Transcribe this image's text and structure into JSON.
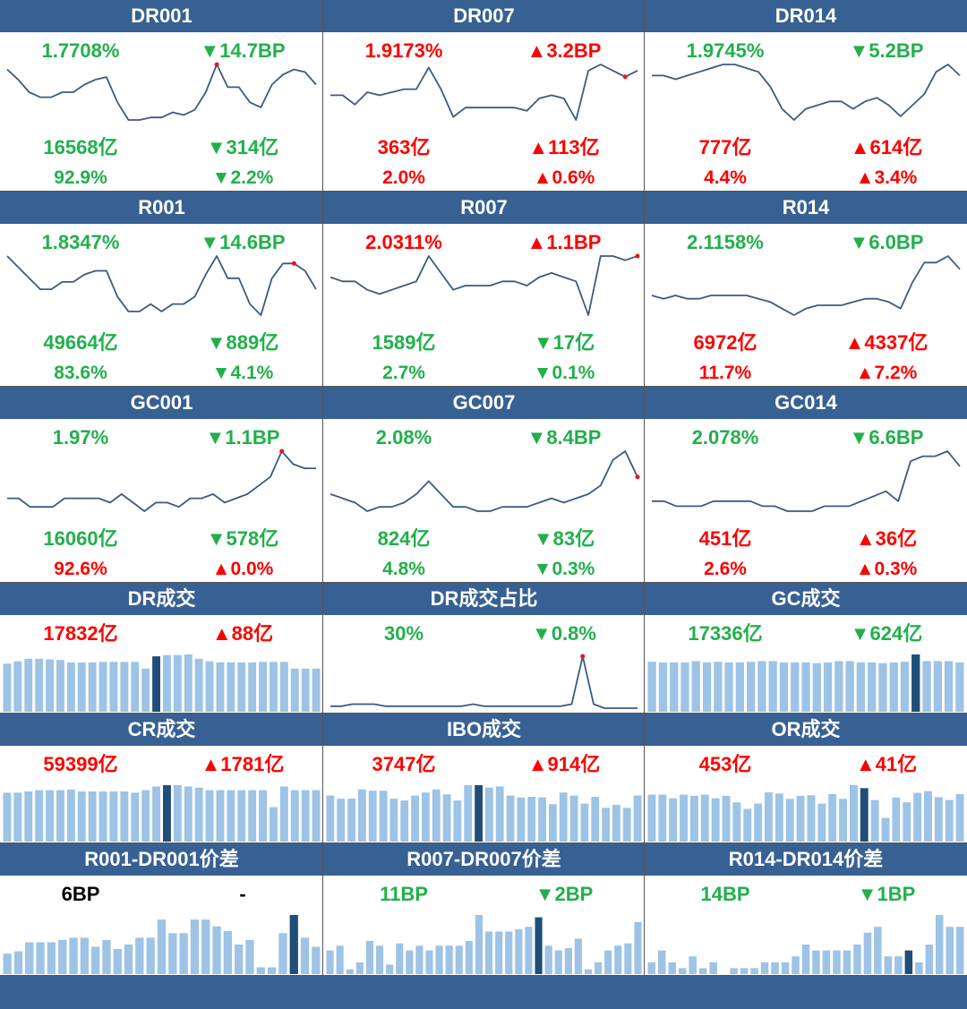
{
  "colors": {
    "header": "#386193",
    "up": "#ff0000",
    "down": "#21b04b",
    "line": "#3d5a80",
    "bar": "#9dc3e6",
    "bar_highlight": "#1f4e79",
    "point": "#e8141a"
  },
  "rows": [
    {
      "kind": "line",
      "cells": [
        {
          "title": "DR001",
          "rate": "1.7708%",
          "rate_dir": "down",
          "rate_chg": "▼14.7BP",
          "vol": "16568亿",
          "vol_dir": "down",
          "vol_chg": "▼314亿",
          "share": "92.9%",
          "share_dir": "down",
          "share_chg": "▼2.2%"
        },
        {
          "title": "DR007",
          "rate": "1.9173%",
          "rate_dir": "up",
          "rate_chg": "▲3.2BP",
          "vol": "363亿",
          "vol_dir": "up",
          "vol_chg": "▲113亿",
          "share": "2.0%",
          "share_dir": "up",
          "share_chg": "▲0.6%"
        },
        {
          "title": "DR014",
          "rate": "1.9745%",
          "rate_dir": "down",
          "rate_chg": "▼5.2BP",
          "vol": "777亿",
          "vol_dir": "up",
          "vol_chg": "▲614亿",
          "share": "4.4%",
          "share_dir": "up",
          "share_chg": "▲3.4%"
        }
      ]
    },
    {
      "kind": "line",
      "cells": [
        {
          "title": "R001",
          "rate": "1.8347%",
          "rate_dir": "down",
          "rate_chg": "▼14.6BP",
          "vol": "49664亿",
          "vol_dir": "down",
          "vol_chg": "▼889亿",
          "share": "83.6%",
          "share_dir": "down",
          "share_chg": "▼4.1%"
        },
        {
          "title": "R007",
          "rate": "2.0311%",
          "rate_dir": "up",
          "rate_chg": "▲1.1BP",
          "vol": "1589亿",
          "vol_dir": "down",
          "vol_chg": "▼17亿",
          "share": "2.7%",
          "share_dir": "down",
          "share_chg": "▼0.1%"
        },
        {
          "title": "R014",
          "rate": "2.1158%",
          "rate_dir": "down",
          "rate_chg": "▼6.0BP",
          "vol": "6972亿",
          "vol_dir": "up",
          "vol_chg": "▲4337亿",
          "share": "11.7%",
          "share_dir": "up",
          "share_chg": "▲7.2%"
        }
      ]
    },
    {
      "kind": "line",
      "cells": [
        {
          "title": "GC001",
          "rate": "1.97%",
          "rate_dir": "down",
          "rate_chg": "▼1.1BP",
          "vol": "16060亿",
          "vol_dir": "down",
          "vol_chg": "▼578亿",
          "share": "92.6%",
          "share_dir": "up",
          "share_chg": "▲0.0%"
        },
        {
          "title": "GC007",
          "rate": "2.08%",
          "rate_dir": "down",
          "rate_chg": "▼8.4BP",
          "vol": "824亿",
          "vol_dir": "down",
          "vol_chg": "▼83亿",
          "share": "4.8%",
          "share_dir": "down",
          "share_chg": "▼0.3%"
        },
        {
          "title": "GC014",
          "rate": "2.078%",
          "rate_dir": "down",
          "rate_chg": "▼6.6BP",
          "vol": "451亿",
          "vol_dir": "up",
          "vol_chg": "▲36亿",
          "share": "2.6%",
          "share_dir": "up",
          "share_chg": "▲0.3%"
        }
      ]
    },
    {
      "kind": "volume",
      "cells": [
        {
          "title": "DR成交",
          "value": "17832亿",
          "value_dir": "up",
          "chg": "▲88亿",
          "chg_dir": "up"
        },
        {
          "title": "DR成交占比",
          "value": "30%",
          "value_dir": "down",
          "chg": "▼0.8%",
          "chg_dir": "down"
        },
        {
          "title": "GC成交",
          "value": "17336亿",
          "value_dir": "down",
          "chg": "▼624亿",
          "chg_dir": "down"
        }
      ]
    },
    {
      "kind": "volume",
      "cells": [
        {
          "title": "CR成交",
          "value": "59399亿",
          "value_dir": "up",
          "chg": "▲1781亿",
          "chg_dir": "up"
        },
        {
          "title": "IBO成交",
          "value": "3747亿",
          "value_dir": "up",
          "chg": "▲914亿",
          "chg_dir": "up"
        },
        {
          "title": "OR成交",
          "value": "453亿",
          "value_dir": "up",
          "chg": "▲41亿",
          "chg_dir": "up"
        }
      ]
    },
    {
      "kind": "spread",
      "cells": [
        {
          "title": "R001-DR001价差",
          "value": "6BP",
          "value_dir": "neutral",
          "chg": "-",
          "chg_dir": "neutral"
        },
        {
          "title": "R007-DR007价差",
          "value": "11BP",
          "value_dir": "down",
          "chg": "▼2BP",
          "chg_dir": "down"
        },
        {
          "title": "R014-DR014价差",
          "value": "14BP",
          "value_dir": "down",
          "chg": "▼1BP",
          "chg_dir": "down"
        }
      ]
    }
  ],
  "chart_data": [
    {
      "panel": "DR001",
      "type": "line",
      "highlight_index": 19,
      "values": [
        61,
        57,
        52,
        50,
        50,
        52,
        52,
        55,
        57,
        58,
        48,
        41,
        41,
        42,
        42,
        44,
        43,
        45,
        52,
        63,
        54,
        54,
        48,
        46,
        55,
        59,
        61,
        60,
        55
      ]
    },
    {
      "panel": "DR007",
      "type": "line",
      "highlight_index": 24,
      "values": [
        34,
        34,
        31,
        35,
        34,
        35,
        36,
        36,
        43,
        36,
        27,
        30,
        30,
        30,
        30,
        30,
        29,
        33,
        34,
        33,
        26,
        42,
        44,
        42,
        40,
        42
      ]
    },
    {
      "panel": "DR014",
      "type": "line",
      "highlight_index": 27,
      "values": [
        55,
        55,
        54,
        55,
        56,
        57,
        58,
        58,
        57,
        56,
        52,
        46,
        43,
        46,
        47,
        48,
        48,
        46,
        48,
        49,
        47,
        44,
        47,
        50,
        56,
        58,
        55
      ]
    },
    {
      "panel": "R001",
      "type": "line",
      "highlight_index": 26,
      "values": [
        66,
        63,
        60,
        57,
        57,
        59,
        59,
        61,
        62,
        62,
        55,
        51,
        51,
        53,
        51,
        53,
        53,
        55,
        61,
        66,
        60,
        60,
        53,
        50,
        60,
        64,
        64,
        62,
        57
      ]
    },
    {
      "panel": "R007",
      "type": "line",
      "highlight_index": 25,
      "values": [
        44,
        43,
        43,
        41,
        40,
        41,
        42,
        43,
        49,
        45,
        41,
        42,
        42,
        42,
        43,
        43,
        42,
        44,
        45,
        44,
        43,
        35,
        49,
        49,
        48,
        49
      ]
    },
    {
      "panel": "R014",
      "type": "line",
      "highlight_index": 27,
      "values": [
        52,
        51,
        52,
        51,
        51,
        52,
        52,
        52,
        52,
        51,
        50,
        48,
        46,
        48,
        49,
        49,
        49,
        50,
        51,
        51,
        50,
        48,
        56,
        62,
        62,
        64,
        60
      ]
    },
    {
      "panel": "GC001",
      "type": "line",
      "highlight_index": 24,
      "values": [
        33,
        33,
        31,
        31,
        31,
        33,
        33,
        33,
        33,
        32,
        34,
        32,
        30,
        32,
        32,
        31,
        33,
        33,
        34,
        32,
        33,
        34,
        36,
        38,
        44,
        41,
        40,
        40
      ]
    },
    {
      "panel": "GC007",
      "type": "line",
      "highlight_index": 25,
      "values": [
        41,
        40,
        39,
        37,
        38,
        38,
        39,
        41,
        44,
        41,
        38,
        38,
        37,
        37,
        38,
        38,
        38,
        39,
        40,
        39,
        40,
        41,
        43,
        49,
        51,
        45
      ]
    },
    {
      "panel": "GC014",
      "type": "line",
      "highlight_index": 26,
      "values": [
        34,
        34,
        33,
        33,
        33,
        34,
        34,
        34,
        34,
        33,
        33,
        32,
        32,
        32,
        33,
        33,
        33,
        34,
        35,
        36,
        34,
        42,
        43,
        43,
        44,
        41
      ]
    },
    {
      "panel": "DR成交",
      "type": "bar",
      "highlight_index": 14,
      "values": [
        78,
        82,
        86,
        86,
        85,
        84,
        80,
        80,
        80,
        81,
        81,
        81,
        81,
        70,
        90,
        92,
        92,
        93,
        86,
        82,
        80,
        80,
        80,
        80,
        81,
        81,
        81,
        70,
        70,
        70
      ]
    },
    {
      "panel": "DR成交占比",
      "type": "line",
      "highlight_index": 23,
      "values": [
        31,
        31,
        32,
        32,
        32,
        31,
        31,
        31,
        31,
        31,
        31,
        31,
        31,
        32,
        31,
        31,
        31,
        31,
        31,
        31,
        31,
        31,
        32,
        56,
        32,
        30,
        30,
        30,
        30
      ]
    },
    {
      "panel": "GC成交",
      "type": "bar",
      "highlight_index": 24,
      "values": [
        75,
        74,
        74,
        74,
        76,
        74,
        75,
        74,
        74,
        75,
        76,
        76,
        74,
        74,
        74,
        73,
        74,
        76,
        76,
        74,
        74,
        73,
        74,
        75,
        86,
        76,
        76,
        76,
        74
      ]
    },
    {
      "panel": "CR成交",
      "type": "bar",
      "highlight_index": 15,
      "values": [
        78,
        78,
        80,
        82,
        82,
        82,
        83,
        80,
        80,
        80,
        80,
        80,
        78,
        82,
        88,
        90,
        90,
        88,
        86,
        82,
        82,
        82,
        82,
        82,
        82,
        55,
        88,
        82,
        82,
        82
      ]
    },
    {
      "panel": "IBO成交",
      "type": "bar",
      "highlight_index": 14,
      "values": [
        75,
        70,
        70,
        85,
        83,
        83,
        70,
        67,
        75,
        80,
        85,
        77,
        67,
        92,
        92,
        88,
        90,
        75,
        72,
        73,
        72,
        61,
        80,
        75,
        62,
        73,
        55,
        60,
        55,
        75
      ]
    },
    {
      "panel": "OR成交",
      "type": "bar",
      "highlight_index": 20,
      "values": [
        79,
        79,
        73,
        79,
        77,
        79,
        73,
        77,
        66,
        55,
        64,
        83,
        81,
        72,
        77,
        78,
        64,
        80,
        72,
        95,
        90,
        70,
        40,
        74,
        66,
        82,
        85,
        75,
        70,
        80
      ]
    },
    {
      "panel": "R001-DR001价差",
      "type": "bar",
      "highlight_index": 26,
      "values": [
        9,
        10,
        14,
        14,
        14,
        15,
        16,
        16,
        12,
        15,
        11,
        13,
        16,
        16,
        24,
        18,
        18,
        24,
        24,
        21,
        19,
        13,
        15,
        3,
        3,
        18,
        26,
        16,
        12
      ]
    },
    {
      "panel": "R007-DR007价差",
      "type": "bar",
      "highlight_index": 21,
      "values": [
        10,
        12,
        2,
        5,
        14,
        12,
        4,
        13,
        10,
        12,
        10,
        12,
        12,
        12,
        14,
        25,
        18,
        18,
        18,
        19,
        20,
        24,
        12,
        10,
        11,
        15,
        2,
        5,
        10,
        12,
        13,
        22
      ]
    },
    {
      "panel": "R014-DR014价差",
      "type": "bar",
      "highlight_index": 25,
      "values": [
        2,
        4,
        2,
        1,
        3,
        1,
        2,
        0,
        1,
        1,
        1,
        2,
        2,
        2,
        3,
        5,
        4,
        4,
        4,
        4,
        5,
        7,
        8,
        3,
        3,
        4,
        2,
        5,
        10,
        8,
        8
      ]
    }
  ]
}
